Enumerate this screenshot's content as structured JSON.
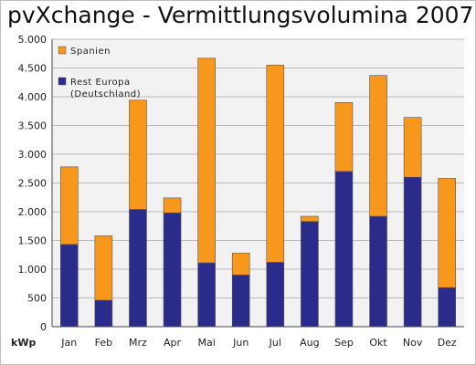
{
  "chart_data": {
    "type": "bar",
    "stacked": true,
    "title": "pvXchange - Vermittlungsvolumina 2007",
    "ylabel": "kWp",
    "xlabel": "",
    "ylim": [
      0,
      5000
    ],
    "yticks": [
      0,
      500,
      1000,
      1500,
      2000,
      2500,
      3000,
      3500,
      4000,
      4500,
      5000
    ],
    "ytick_labels": [
      "0",
      "500",
      "1.000",
      "1.500",
      "2.000",
      "2.500",
      "3.000",
      "3.500",
      "4.000",
      "4.500",
      "5.000"
    ],
    "grid": true,
    "legend_position": "top-left",
    "categories": [
      "Jan",
      "Feb",
      "Mrz",
      "Apr",
      "Mai",
      "Jun",
      "Jul",
      "Aug",
      "Sep",
      "Okt",
      "Nov",
      "Dez"
    ],
    "series": [
      {
        "name": "Rest Europa\n(Deutschland)",
        "color": "#2b2b8c",
        "values": [
          1430,
          460,
          2040,
          1980,
          1110,
          900,
          1120,
          1830,
          2700,
          1920,
          2600,
          680
        ]
      },
      {
        "name": "Spanien",
        "color": "#f7981d",
        "values": [
          1350,
          1120,
          1900,
          260,
          3560,
          380,
          3430,
          90,
          1200,
          2450,
          1040,
          1900
        ]
      }
    ]
  }
}
